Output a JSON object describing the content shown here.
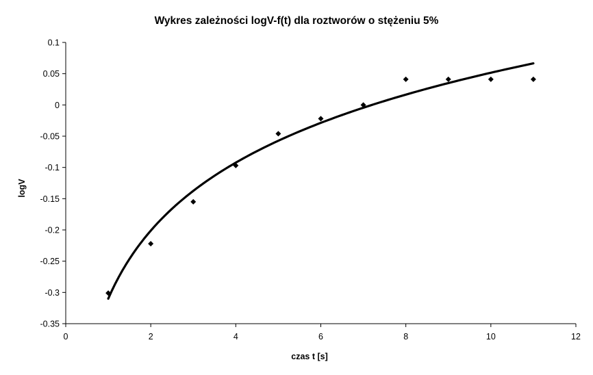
{
  "chart_data": {
    "type": "scatter",
    "title": "Wykres zależności logV-f(t) dla roztworów o stężeniu 5%",
    "xlabel": "czas t [s]",
    "ylabel": "logV",
    "xlim": [
      0,
      12
    ],
    "ylim": [
      -0.35,
      0.1
    ],
    "x_ticks": [
      0,
      2,
      4,
      6,
      8,
      10,
      12
    ],
    "x_tick_labels": [
      "0",
      "2",
      "4",
      "6",
      "8",
      "10",
      "12"
    ],
    "y_ticks": [
      0.1,
      0.05,
      0,
      -0.05,
      -0.1,
      -0.15,
      -0.2,
      -0.25,
      -0.3,
      -0.35
    ],
    "y_tick_labels": [
      "0.1",
      "0.05",
      "0",
      "-0.05",
      "-0.1",
      "-0.15",
      "-0.2",
      "-0.25",
      "-0.3",
      "-0.35"
    ],
    "grid": false,
    "legend": "none",
    "marker": "diamond",
    "series": [
      {
        "points": [
          {
            "x": 1,
            "y": -0.301
          },
          {
            "x": 2,
            "y": -0.222
          },
          {
            "x": 3,
            "y": -0.155
          },
          {
            "x": 4,
            "y": -0.097
          },
          {
            "x": 5,
            "y": -0.046
          },
          {
            "x": 6,
            "y": -0.022
          },
          {
            "x": 7,
            "y": 0.0
          },
          {
            "x": 8,
            "y": 0.041
          },
          {
            "x": 9,
            "y": 0.041
          },
          {
            "x": 10,
            "y": 0.041
          },
          {
            "x": 11,
            "y": 0.041
          }
        ]
      }
    ],
    "trendline": {
      "type": "logarithmic",
      "a": 0.157,
      "b": -0.31,
      "x_range": [
        1,
        11
      ]
    }
  }
}
